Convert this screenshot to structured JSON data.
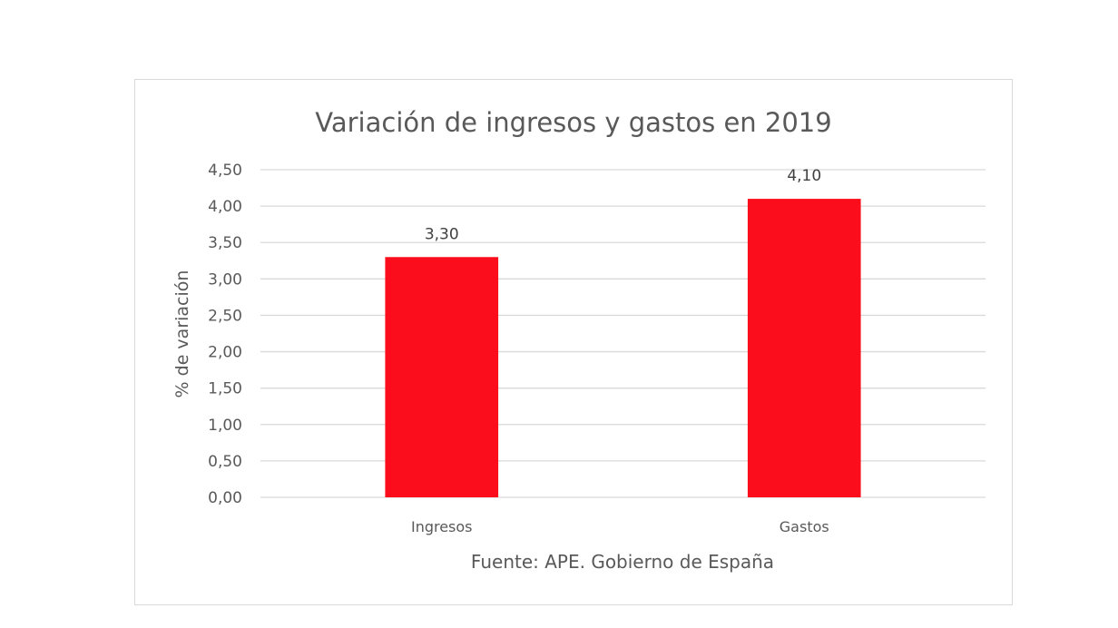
{
  "colors": {
    "bar": "#fc0d1b",
    "grid": "#d9d9d9",
    "text": "#595959"
  },
  "chart_data": {
    "type": "bar",
    "title": "Variación de ingresos y gastos en 2019",
    "categories": [
      "Ingresos",
      "Gastos"
    ],
    "values": [
      3.3,
      4.1
    ],
    "value_labels": [
      "3,30",
      "4,10"
    ],
    "xlabel": "",
    "ylabel": "% de variación",
    "ylim": [
      0,
      4.5
    ],
    "ytick_values": [
      0,
      0.5,
      1.0,
      1.5,
      2.0,
      2.5,
      3.0,
      3.5,
      4.0,
      4.5
    ],
    "ytick_labels": [
      "0,00",
      "0,50",
      "1,00",
      "1,50",
      "2,00",
      "2,50",
      "3,00",
      "3,50",
      "4,00",
      "4,50"
    ],
    "grid": true,
    "legend": "none",
    "source": "Fuente: APE. Gobierno de España"
  }
}
